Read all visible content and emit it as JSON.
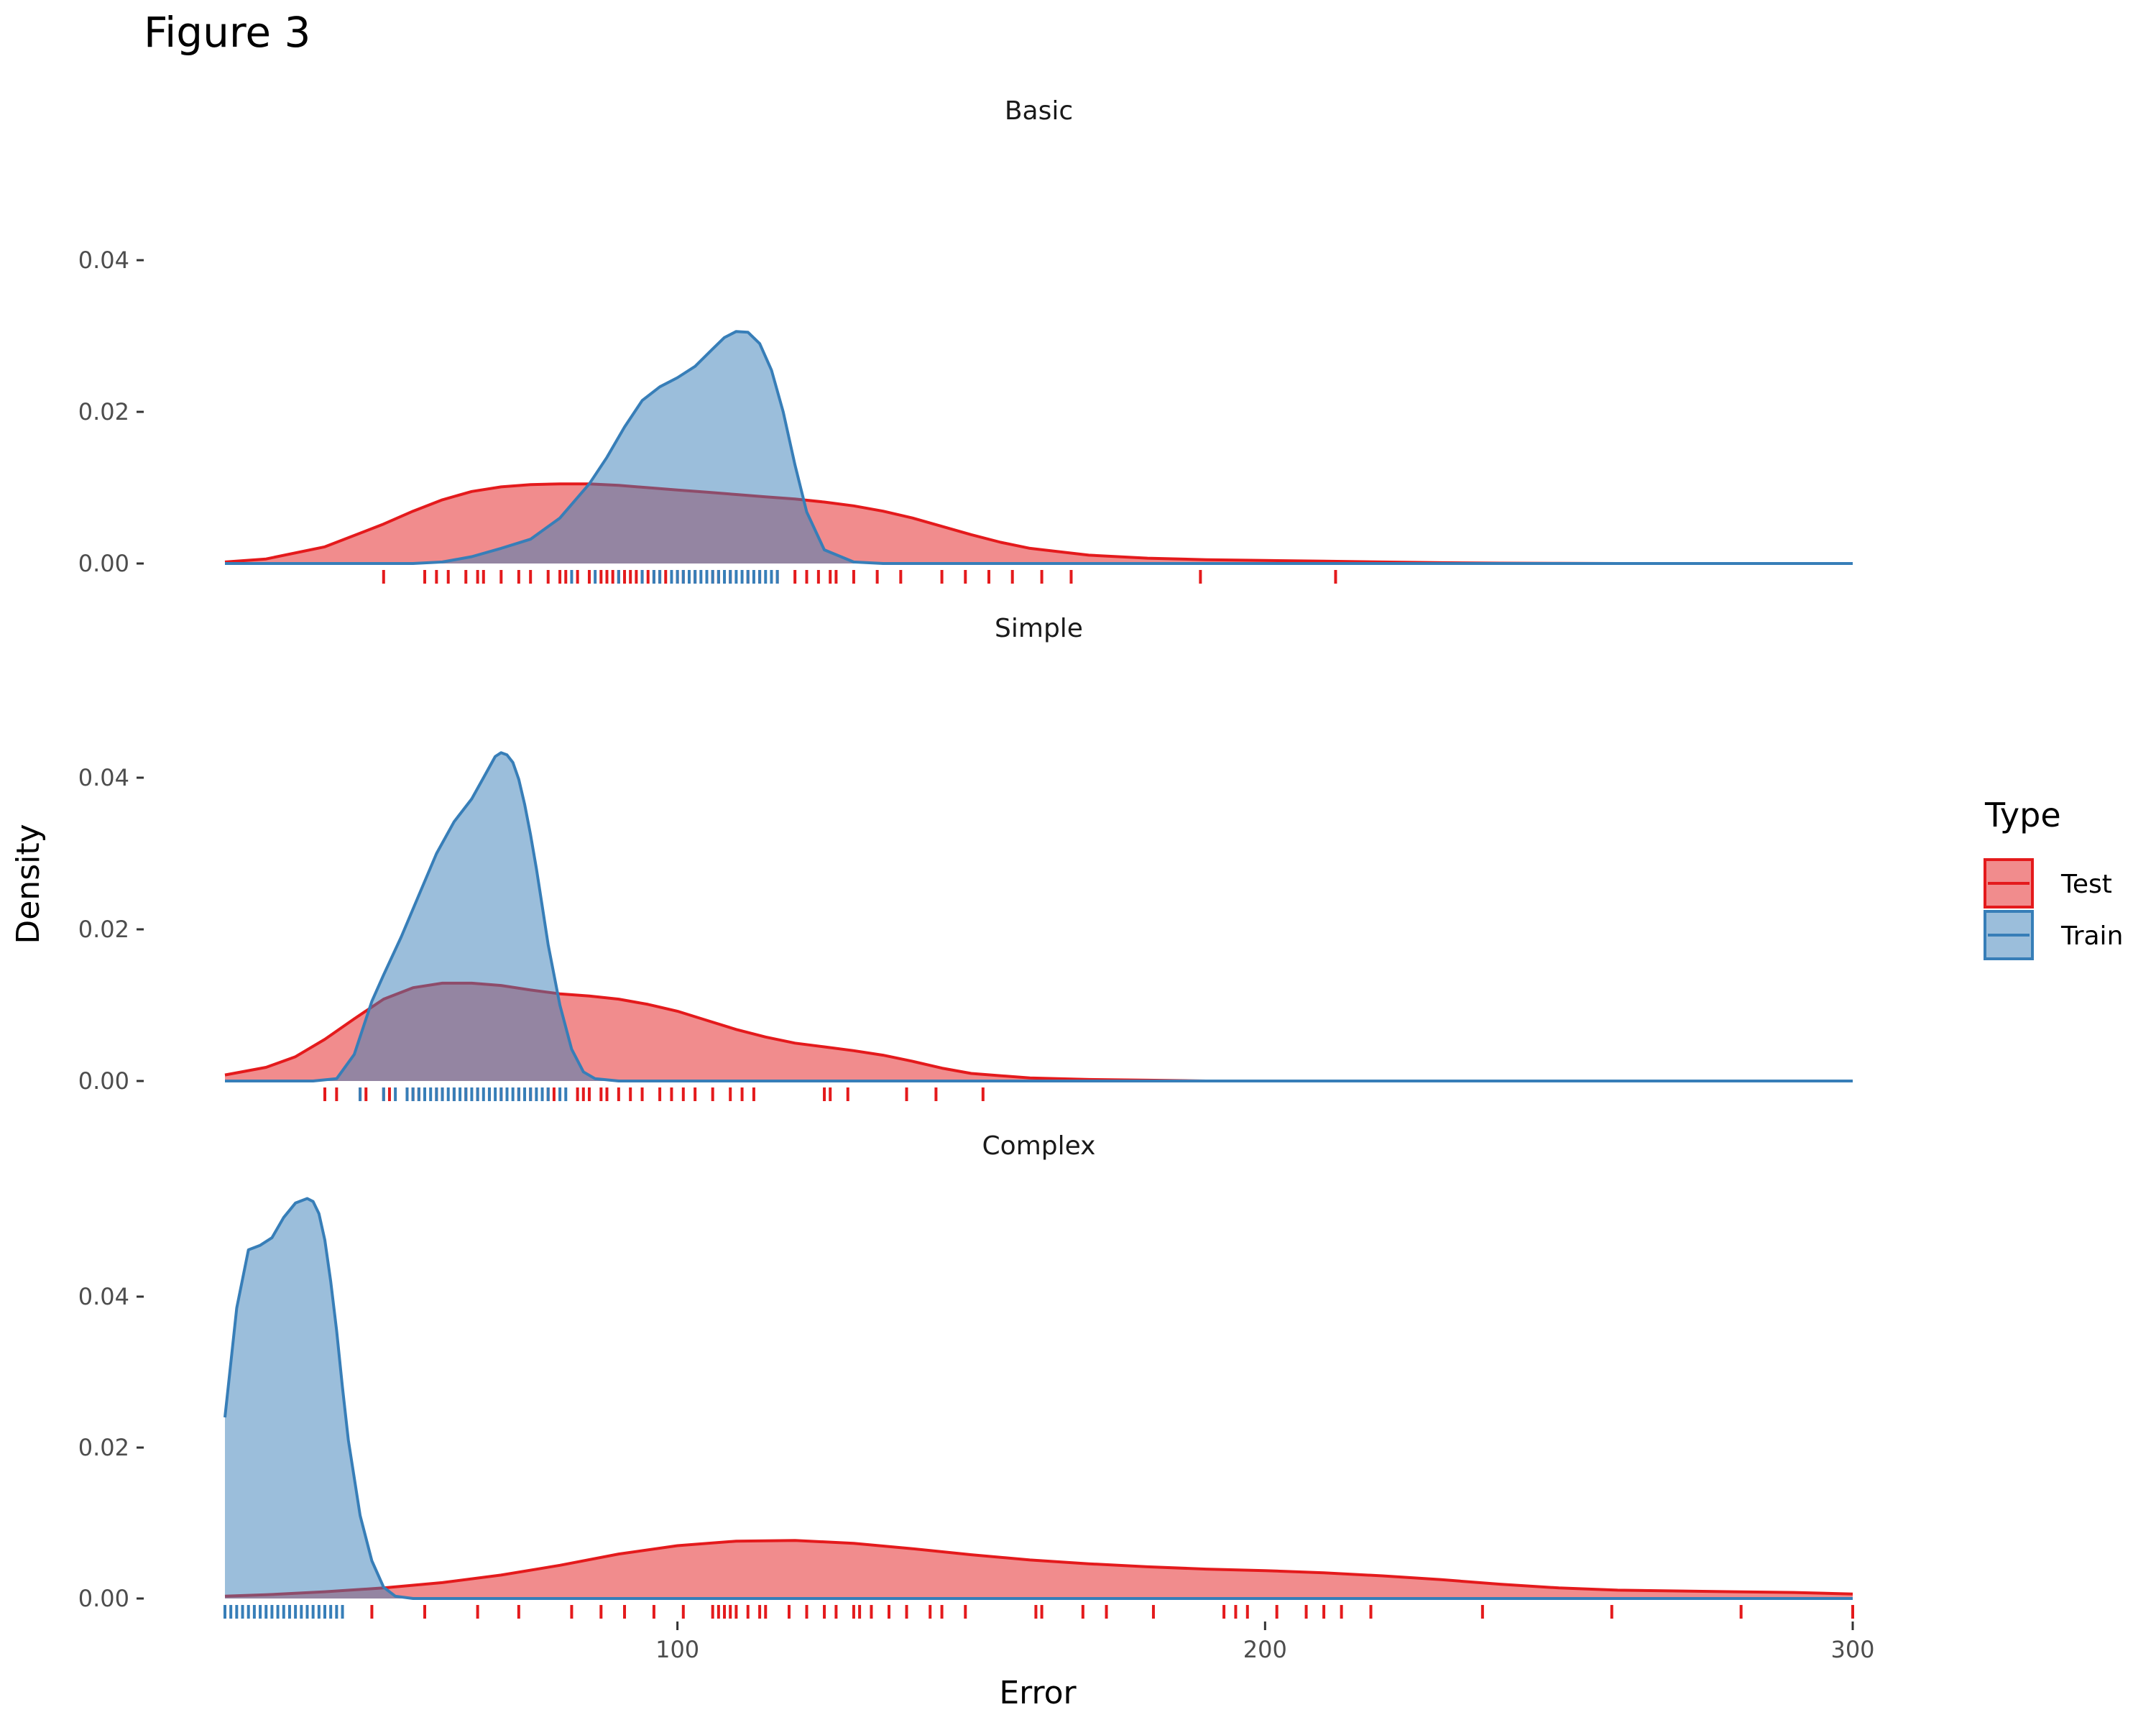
{
  "figure_title": "Figure 3",
  "chart_data": {
    "type": "area",
    "subtype": "density",
    "xlabel": "Error",
    "ylabel": "Density",
    "xlim": [
      23,
      300
    ],
    "x_ticks": [
      100,
      200,
      300
    ],
    "y_ticks": [
      0.0,
      0.02,
      0.04
    ],
    "y_tick_labels": [
      "0.00",
      "0.02",
      "0.04"
    ],
    "grid": false,
    "legend": {
      "title": "Type",
      "placement": "right",
      "entries": [
        {
          "label": "Test",
          "fill": "#e41a1c",
          "line": "#e41a1c"
        },
        {
          "label": "Train",
          "fill": "#377eb8",
          "line": "#377eb8"
        }
      ]
    },
    "panels": [
      {
        "title": "Basic",
        "ylim": [
          0,
          0.047
        ],
        "series": [
          {
            "name": "Test",
            "color": "#e41a1c",
            "x": [
              23,
              30,
              40,
              50,
              55,
              60,
              65,
              70,
              75,
              80,
              85,
              90,
              95,
              100,
              105,
              110,
              115,
              120,
              125,
              130,
              135,
              140,
              145,
              150,
              155,
              160,
              170,
              180,
              190,
              200,
              210,
              220,
              230,
              240,
              250,
              260,
              280,
              300
            ],
            "y": [
              0.0002,
              0.0006,
              0.0022,
              0.0052,
              0.0069,
              0.0084,
              0.0095,
              0.0101,
              0.0104,
              0.0105,
              0.0105,
              0.0103,
              0.01,
              0.0097,
              0.0094,
              0.0091,
              0.0088,
              0.0085,
              0.0081,
              0.0076,
              0.0069,
              0.006,
              0.0049,
              0.0038,
              0.0028,
              0.002,
              0.0011,
              0.0007,
              0.0005,
              0.0004,
              0.0003,
              0.0002,
              0.0001,
              5e-05,
              2e-05,
              0.0,
              0.0,
              0.0
            ]
          },
          {
            "name": "Train",
            "color": "#377eb8",
            "x": [
              23,
              55,
              60,
              65,
              70,
              75,
              80,
              85,
              88,
              91,
              94,
              97,
              100,
              103,
              106,
              108,
              110,
              112,
              114,
              116,
              118,
              120,
              122,
              125,
              130,
              135,
              140,
              145,
              150,
              170,
              200,
              250,
              300
            ],
            "y": [
              0.0,
              0.0,
              0.0002,
              0.0009,
              0.002,
              0.0032,
              0.006,
              0.0105,
              0.014,
              0.018,
              0.0215,
              0.0233,
              0.0245,
              0.026,
              0.0283,
              0.0298,
              0.0306,
              0.0305,
              0.029,
              0.0255,
              0.02,
              0.013,
              0.0068,
              0.0018,
              0.0002,
              0.0,
              0.0,
              0.0,
              0.0,
              0.0,
              0.0,
              0.0,
              0.0
            ]
          }
        ],
        "rug": {
          "Test": [
            50,
            57,
            59,
            61,
            64,
            66,
            67,
            70,
            73,
            75,
            78,
            80,
            81,
            83,
            85,
            87,
            88,
            89,
            90,
            91,
            92,
            93,
            94,
            95,
            96,
            97,
            98,
            100,
            101,
            103,
            105,
            106,
            107,
            109,
            112,
            114,
            117,
            120,
            122,
            124,
            126,
            127,
            130,
            134,
            138,
            145,
            149,
            153,
            157,
            162,
            167,
            189,
            212
          ],
          "Train": [
            82,
            86,
            90,
            94,
            96,
            97,
            99,
            100,
            101,
            102,
            103,
            104,
            105,
            106,
            107,
            108,
            109,
            110,
            111,
            112,
            113,
            114,
            115,
            116,
            117
          ]
        }
      },
      {
        "title": "Simple",
        "ylim": [
          0,
          0.047
        ],
        "series": [
          {
            "name": "Test",
            "color": "#e41a1c",
            "x": [
              23,
              30,
              35,
              40,
              45,
              50,
              55,
              60,
              65,
              70,
              75,
              80,
              85,
              90,
              95,
              100,
              105,
              110,
              115,
              120,
              125,
              130,
              135,
              140,
              145,
              150,
              160,
              170,
              180,
              190,
              200,
              250,
              300
            ],
            "y": [
              0.0008,
              0.0018,
              0.0032,
              0.0055,
              0.0082,
              0.0108,
              0.0123,
              0.0129,
              0.0129,
              0.0126,
              0.012,
              0.0115,
              0.0112,
              0.0108,
              0.0101,
              0.0092,
              0.008,
              0.0068,
              0.0058,
              0.005,
              0.0045,
              0.004,
              0.0034,
              0.0026,
              0.0017,
              0.001,
              0.0004,
              0.0002,
              0.0001,
              0.0,
              0.0,
              0.0,
              0.0
            ]
          },
          {
            "name": "Train",
            "color": "#377eb8",
            "x": [
              23,
              38,
              42,
              45,
              48,
              50,
              53,
              56,
              59,
              62,
              65,
              67,
              69,
              70,
              71,
              72,
              73,
              74,
              75,
              76,
              77,
              78,
              80,
              82,
              84,
              86,
              90,
              100,
              150,
              200,
              250,
              300
            ],
            "y": [
              0.0,
              0.0,
              0.0003,
              0.0035,
              0.0105,
              0.014,
              0.019,
              0.0245,
              0.03,
              0.0342,
              0.0372,
              0.04,
              0.0428,
              0.0433,
              0.043,
              0.042,
              0.0398,
              0.0365,
              0.0325,
              0.028,
              0.023,
              0.018,
              0.01,
              0.0042,
              0.0012,
              0.0003,
              0.0,
              0.0,
              0.0,
              0.0,
              0.0,
              0.0
            ]
          }
        ],
        "rug": {
          "Test": [
            40,
            42,
            46,
            47,
            50,
            51,
            54,
            55,
            56,
            59,
            60,
            62,
            64,
            66,
            68,
            70,
            71,
            73,
            75,
            78,
            79,
            83,
            84,
            85,
            87,
            88,
            90,
            92,
            94,
            97,
            99,
            101,
            103,
            106,
            109,
            111,
            113,
            125,
            126,
            129,
            139,
            144,
            152
          ],
          "Train": [
            46,
            50,
            52,
            54,
            55,
            56,
            57,
            58,
            59,
            60,
            61,
            62,
            63,
            64,
            65,
            66,
            67,
            68,
            69,
            70,
            71,
            72,
            73,
            74,
            75,
            76,
            77,
            78,
            80,
            81
          ]
        }
      },
      {
        "title": "Complex",
        "ylim": [
          0,
          0.057
        ],
        "series": [
          {
            "name": "Test",
            "color": "#e41a1c",
            "x": [
              23,
              30,
              40,
              50,
              60,
              70,
              80,
              90,
              100,
              110,
              120,
              130,
              140,
              150,
              160,
              170,
              180,
              190,
              200,
              210,
              220,
              230,
              240,
              250,
              260,
              270,
              280,
              290,
              300
            ],
            "y": [
              0.0003,
              0.0005,
              0.0009,
              0.0014,
              0.0021,
              0.0031,
              0.0044,
              0.0059,
              0.007,
              0.0076,
              0.0077,
              0.0073,
              0.0066,
              0.0058,
              0.0051,
              0.0046,
              0.0042,
              0.0039,
              0.0037,
              0.0034,
              0.003,
              0.0025,
              0.0019,
              0.0014,
              0.0011,
              0.001,
              0.0009,
              0.0008,
              0.0006
            ]
          },
          {
            "name": "Train",
            "color": "#377eb8",
            "x": [
              23,
              25,
              27,
              29,
              31,
              33,
              35,
              37,
              38,
              39,
              40,
              41,
              42,
              43,
              44,
              46,
              48,
              50,
              52,
              55,
              100,
              200,
              300
            ],
            "y": [
              0.024,
              0.0385,
              0.0462,
              0.0468,
              0.0478,
              0.0505,
              0.0524,
              0.053,
              0.0526,
              0.051,
              0.0475,
              0.042,
              0.0355,
              0.028,
              0.021,
              0.011,
              0.005,
              0.0015,
              0.0003,
              0.0,
              0.0,
              0.0,
              0.0
            ]
          }
        ],
        "rug": {
          "Test": [
            48,
            57,
            66,
            73,
            82,
            87,
            91,
            96,
            101,
            106,
            107,
            108,
            109,
            110,
            112,
            114,
            115,
            119,
            122,
            125,
            127,
            130,
            131,
            133,
            136,
            139,
            143,
            145,
            149,
            161,
            162,
            169,
            173,
            181,
            193,
            195,
            197,
            202,
            207,
            210,
            213,
            218,
            237,
            259,
            281,
            300
          ],
          "Train": [
            23,
            24,
            25,
            26,
            27,
            28,
            29,
            30,
            31,
            32,
            33,
            34,
            35,
            36,
            37,
            38,
            39,
            40,
            41,
            42,
            43
          ]
        }
      }
    ]
  }
}
